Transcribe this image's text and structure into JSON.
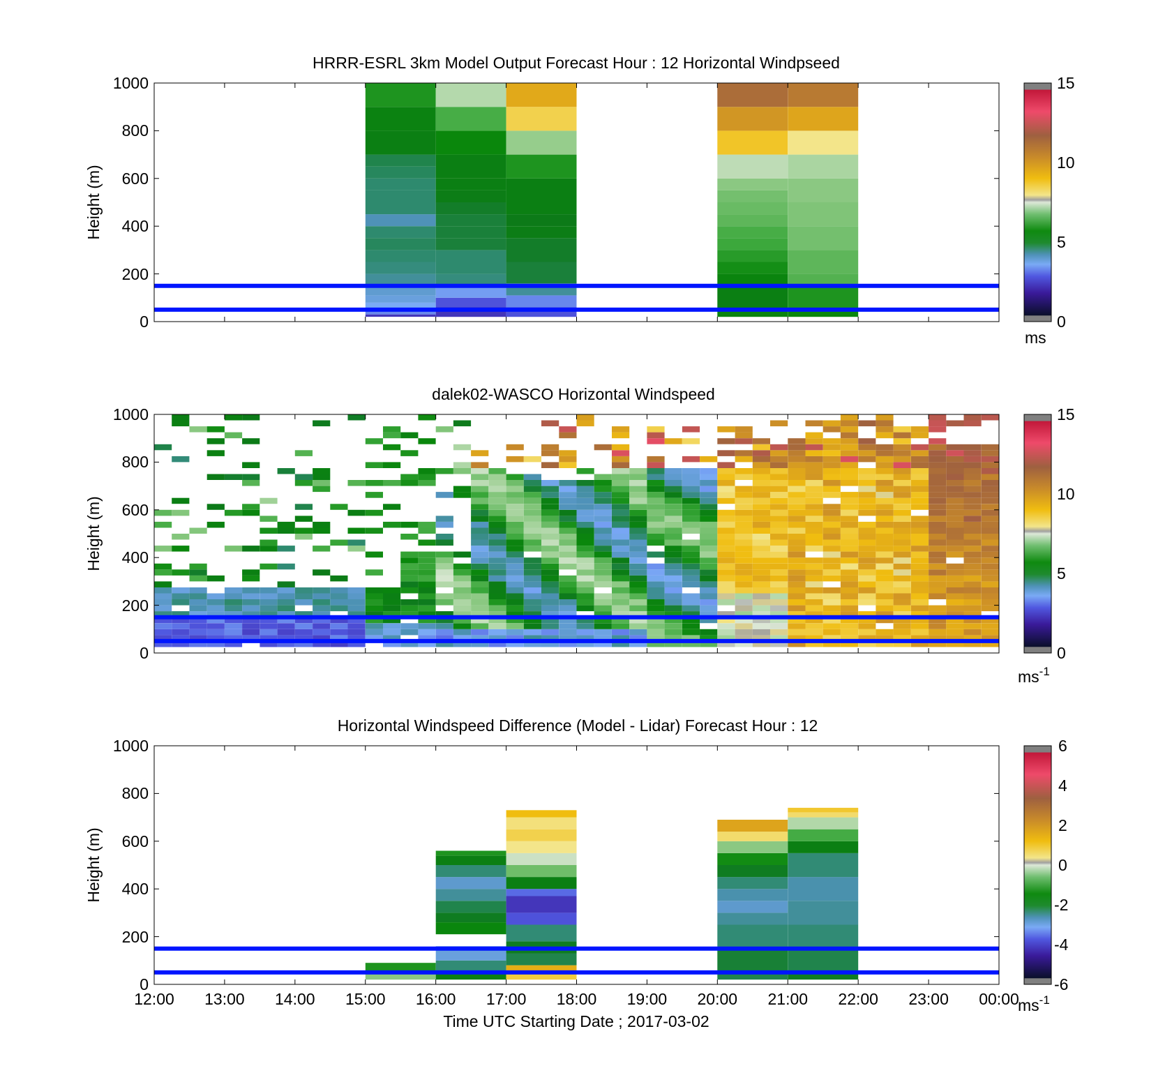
{
  "figure": {
    "xlabel": "Time UTC  Starting Date ; 2017-03-02",
    "xticks": [
      "12:00",
      "13:00",
      "14:00",
      "15:00",
      "16:00",
      "17:00",
      "18:00",
      "19:00",
      "20:00",
      "21:00",
      "22:00",
      "23:00",
      "00:00"
    ],
    "reference_line_color": "#0015ff",
    "reference_heights_m": [
      50,
      150
    ]
  },
  "chart_data": [
    {
      "type": "heatmap",
      "title": "HRRR-ESRL 3km Model Output   Forecast Hour : 12 Horizontal Windpseed",
      "ylabel": "Height (m)",
      "xlim": [
        12,
        24
      ],
      "ylim": [
        0,
        1000
      ],
      "yticks": [
        0,
        200,
        400,
        600,
        800,
        1000
      ],
      "colorbar": {
        "ticks": [
          0,
          5,
          10,
          15
        ],
        "unit_text": "ms",
        "unit_sup": "",
        "range": [
          0,
          15
        ]
      },
      "columns": [
        {
          "t0": 15,
          "t1": 16,
          "cells": [
            [
              20,
              30,
              2.0
            ],
            [
              30,
              45,
              3.0
            ],
            [
              45,
              80,
              3.3
            ],
            [
              80,
              110,
              3.5
            ],
            [
              110,
              150,
              3.6
            ],
            [
              150,
              200,
              4.0
            ],
            [
              200,
              250,
              4.2
            ],
            [
              250,
              300,
              4.3
            ],
            [
              300,
              350,
              4.4
            ],
            [
              350,
              400,
              4.3
            ],
            [
              400,
              450,
              3.8
            ],
            [
              450,
              500,
              4.3
            ],
            [
              500,
              550,
              4.3
            ],
            [
              550,
              600,
              4.3
            ],
            [
              600,
              650,
              4.4
            ],
            [
              650,
              700,
              4.5
            ],
            [
              700,
              800,
              5.0
            ],
            [
              800,
              900,
              5.1
            ],
            [
              900,
              1000,
              5.5
            ]
          ]
        },
        {
          "t0": 16,
          "t1": 17,
          "cells": [
            [
              20,
              60,
              2.0
            ],
            [
              60,
              100,
              2.5
            ],
            [
              100,
              150,
              3.2
            ],
            [
              150,
              200,
              4.2
            ],
            [
              200,
              250,
              4.3
            ],
            [
              250,
              300,
              4.3
            ],
            [
              300,
              350,
              4.6
            ],
            [
              350,
              400,
              4.6
            ],
            [
              400,
              450,
              4.6
            ],
            [
              450,
              500,
              4.7
            ],
            [
              500,
              550,
              4.9
            ],
            [
              550,
              600,
              5.0
            ],
            [
              600,
              700,
              5.0
            ],
            [
              700,
              800,
              5.3
            ],
            [
              800,
              900,
              5.9
            ],
            [
              900,
              1000,
              6.9
            ]
          ]
        },
        {
          "t0": 17,
          "t1": 18,
          "cells": [
            [
              20,
              60,
              2.5
            ],
            [
              60,
              110,
              3.0
            ],
            [
              110,
              160,
              4.0
            ],
            [
              160,
              250,
              4.6
            ],
            [
              250,
              350,
              4.7
            ],
            [
              350,
              400,
              4.9
            ],
            [
              400,
              450,
              4.8
            ],
            [
              450,
              500,
              5.0
            ],
            [
              500,
              600,
              5.0
            ],
            [
              600,
              700,
              5.5
            ],
            [
              700,
              800,
              6.6
            ],
            [
              800,
              900,
              8.5
            ],
            [
              900,
              1000,
              9.5
            ]
          ]
        },
        {
          "t0": 20,
          "t1": 21,
          "cells": [
            [
              20,
              50,
              5.2
            ],
            [
              50,
              150,
              5.0
            ],
            [
              150,
              200,
              5.2
            ],
            [
              200,
              250,
              5.4
            ],
            [
              250,
              300,
              5.6
            ],
            [
              300,
              350,
              5.8
            ],
            [
              350,
              400,
              5.9
            ],
            [
              400,
              450,
              6.1
            ],
            [
              450,
              500,
              6.2
            ],
            [
              500,
              550,
              6.3
            ],
            [
              550,
              600,
              6.5
            ],
            [
              600,
              700,
              7.0
            ],
            [
              700,
              800,
              8.8
            ],
            [
              800,
              900,
              10.0
            ],
            [
              900,
              1000,
              11.2
            ]
          ]
        },
        {
          "t0": 21,
          "t1": 22,
          "cells": [
            [
              20,
              50,
              5.3
            ],
            [
              50,
              150,
              5.5
            ],
            [
              150,
              200,
              6.0
            ],
            [
              200,
              300,
              6.1
            ],
            [
              300,
              400,
              6.3
            ],
            [
              400,
              500,
              6.4
            ],
            [
              500,
              600,
              6.5
            ],
            [
              600,
              700,
              6.8
            ],
            [
              700,
              800,
              8.0
            ],
            [
              800,
              900,
              9.6
            ],
            [
              900,
              1000,
              10.8
            ]
          ]
        }
      ]
    },
    {
      "type": "heatmap",
      "title": "dalek02-WASCO  Horizontal Windspeed",
      "ylabel": "Height (m)",
      "xlim": [
        12,
        24
      ],
      "ylim": [
        0,
        1000
      ],
      "yticks": [
        0,
        200,
        400,
        600,
        800,
        1000
      ],
      "colorbar": {
        "ticks": [
          0,
          5,
          10,
          15
        ],
        "unit_text": "ms",
        "unit_sup": "-1",
        "range": [
          0,
          15
        ]
      }
    },
    {
      "type": "heatmap",
      "title": "Horizontal Windspeed Difference (Model - Lidar) Forecast Hour : 12",
      "ylabel": "Height (m)",
      "xlim": [
        12,
        24
      ],
      "ylim": [
        0,
        1000
      ],
      "yticks": [
        0,
        200,
        400,
        600,
        800,
        1000
      ],
      "colorbar": {
        "ticks": [
          -6,
          -4,
          -2,
          0,
          2,
          4,
          6
        ],
        "unit_text": "ms",
        "unit_sup": "-1",
        "range": [
          -6,
          6
        ]
      },
      "columns": [
        {
          "t0": 15,
          "t1": 16,
          "cells": [
            [
              20,
              50,
              -0.8
            ],
            [
              50,
              90,
              -1.6
            ]
          ]
        },
        {
          "t0": 16,
          "t1": 17,
          "cells": [
            [
              20,
              50,
              -2.0
            ],
            [
              50,
              100,
              -2.6
            ],
            [
              100,
              160,
              -3.2
            ],
            [
              210,
              260,
              -1.8
            ],
            [
              260,
              300,
              -2.2
            ],
            [
              300,
              350,
              -2.4
            ],
            [
              350,
              400,
              -2.8
            ],
            [
              400,
              450,
              -3.1
            ],
            [
              450,
              500,
              -2.6
            ],
            [
              500,
              540,
              -2.0
            ],
            [
              540,
              560,
              -1.6
            ]
          ]
        },
        {
          "t0": 17,
          "t1": 18,
          "cells": [
            [
              20,
              50,
              0.9
            ],
            [
              50,
              80,
              1.5
            ],
            [
              80,
              130,
              -2.4
            ],
            [
              130,
              180,
              -2.2
            ],
            [
              180,
              250,
              -2.6
            ],
            [
              250,
              300,
              -4.0
            ],
            [
              300,
              370,
              -4.4
            ],
            [
              370,
              400,
              -3.8
            ],
            [
              400,
              450,
              -2.0
            ],
            [
              450,
              500,
              -1.0
            ],
            [
              500,
              550,
              -0.3
            ],
            [
              550,
              600,
              0.4
            ],
            [
              600,
              650,
              0.8
            ],
            [
              650,
              700,
              0.5
            ],
            [
              700,
              730,
              1.2
            ]
          ]
        },
        {
          "t0": 20,
          "t1": 21,
          "cells": [
            [
              20,
              50,
              -2.4
            ],
            [
              50,
              150,
              -2.3
            ],
            [
              150,
              250,
              -2.6
            ],
            [
              250,
              300,
              -2.8
            ],
            [
              300,
              350,
              -3.1
            ],
            [
              350,
              400,
              -2.9
            ],
            [
              400,
              450,
              -2.6
            ],
            [
              450,
              500,
              -2.2
            ],
            [
              500,
              550,
              -1.7
            ],
            [
              550,
              600,
              -0.8
            ],
            [
              600,
              640,
              0.6
            ],
            [
              640,
              690,
              1.7
            ]
          ]
        },
        {
          "t0": 21,
          "t1": 22,
          "cells": [
            [
              20,
              50,
              -2.2
            ],
            [
              50,
              150,
              -2.4
            ],
            [
              150,
              250,
              -2.6
            ],
            [
              250,
              350,
              -2.8
            ],
            [
              350,
              450,
              -2.9
            ],
            [
              450,
              550,
              -2.6
            ],
            [
              550,
              600,
              -2.0
            ],
            [
              600,
              650,
              -1.3
            ],
            [
              650,
              700,
              -0.5
            ],
            [
              700,
              720,
              0.6
            ],
            [
              720,
              740,
              1.0
            ]
          ]
        }
      ]
    }
  ]
}
